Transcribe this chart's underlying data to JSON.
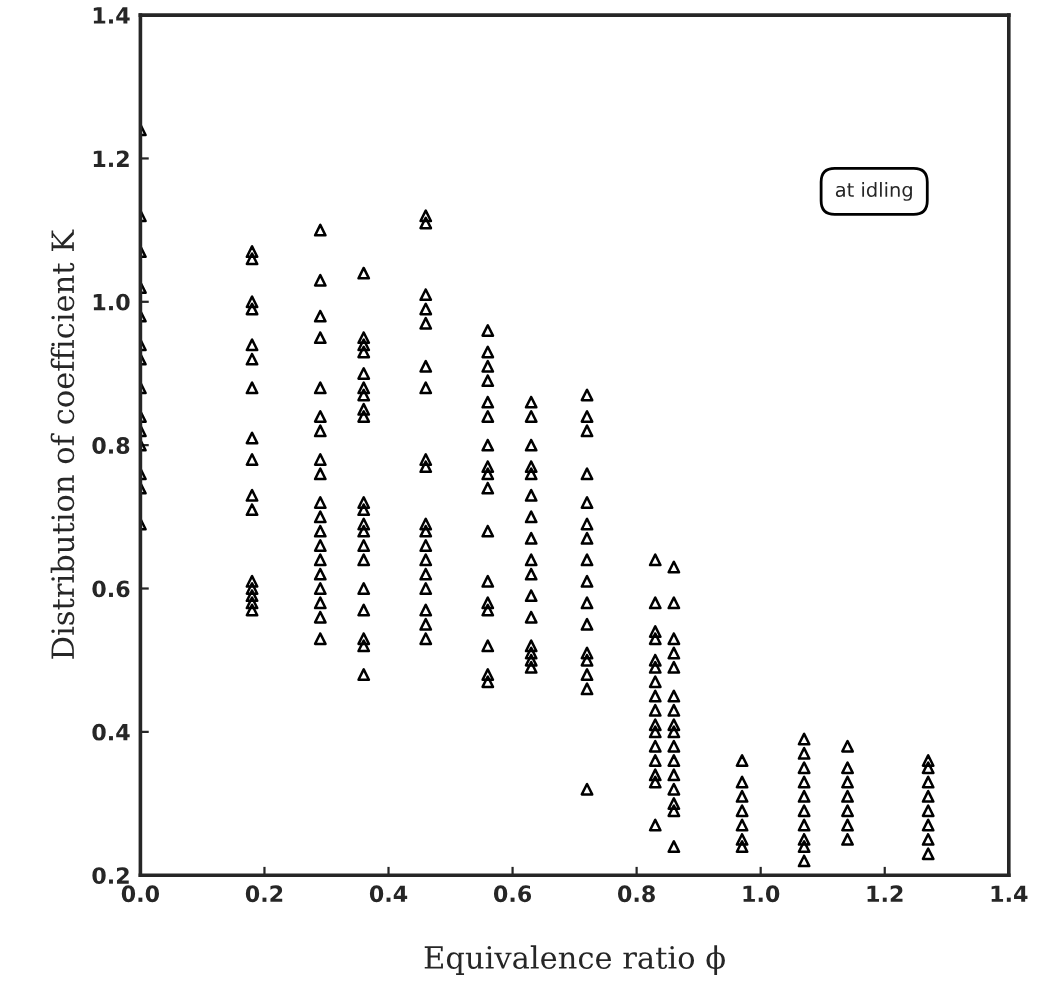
{
  "chart_data": {
    "type": "scatter",
    "xlabel": "Equivalence ratio ϕ",
    "ylabel": "Distribution of coefficient K",
    "xlim": [
      0.0,
      1.4
    ],
    "ylim": [
      0.2,
      1.4
    ],
    "xticks": [
      {
        "value": 0,
        "label": "0.0"
      },
      0.2,
      0.4,
      0.6,
      0.8,
      {
        "value": 1,
        "label": "1.0"
      },
      1.2,
      1.4
    ],
    "yticks": [
      0.2,
      0.4,
      0.6,
      0.8,
      {
        "value": 1,
        "label": "1.0"
      },
      1.2,
      1.4
    ],
    "grid": false,
    "legend": false,
    "marker": "triangle",
    "annotations": [
      "at idling"
    ],
    "series": [
      {
        "color": "#000000",
        "x": [
          0,
          0,
          0,
          0,
          0,
          0,
          0,
          0,
          0,
          0,
          0,
          0,
          0,
          0,
          0.18,
          0.18,
          0.18,
          0.18,
          0.18,
          0.18,
          0.18,
          0.18,
          0.18,
          0.18,
          0.18,
          0.18,
          0.18,
          0.18,
          0.18,
          0.18,
          0.29,
          0.29,
          0.29,
          0.29,
          0.29,
          0.29,
          0.29,
          0.29,
          0.29,
          0.29,
          0.29,
          0.29,
          0.29,
          0.29,
          0.29,
          0.29,
          0.29,
          0.29,
          0.29,
          0.36,
          0.36,
          0.36,
          0.36,
          0.36,
          0.36,
          0.36,
          0.36,
          0.36,
          0.36,
          0.36,
          0.36,
          0.36,
          0.36,
          0.36,
          0.36,
          0.36,
          0.36,
          0.36,
          0.36,
          0.46,
          0.46,
          0.46,
          0.46,
          0.46,
          0.46,
          0.46,
          0.46,
          0.46,
          0.46,
          0.46,
          0.46,
          0.46,
          0.46,
          0.46,
          0.46,
          0.46,
          0.46,
          0.56,
          0.56,
          0.56,
          0.56,
          0.56,
          0.56,
          0.56,
          0.56,
          0.56,
          0.56,
          0.56,
          0.56,
          0.56,
          0.56,
          0.56,
          0.56,
          0.56,
          0.63,
          0.63,
          0.63,
          0.63,
          0.63,
          0.63,
          0.63,
          0.63,
          0.63,
          0.63,
          0.63,
          0.63,
          0.63,
          0.63,
          0.63,
          0.63,
          0.72,
          0.72,
          0.72,
          0.72,
          0.72,
          0.72,
          0.72,
          0.72,
          0.72,
          0.72,
          0.72,
          0.72,
          0.72,
          0.72,
          0.72,
          0.72,
          0.83,
          0.83,
          0.83,
          0.83,
          0.83,
          0.83,
          0.83,
          0.83,
          0.83,
          0.83,
          0.83,
          0.83,
          0.83,
          0.83,
          0.83,
          0.83,
          0.86,
          0.86,
          0.86,
          0.86,
          0.86,
          0.86,
          0.86,
          0.86,
          0.86,
          0.86,
          0.86,
          0.86,
          0.86,
          0.86,
          0.86,
          0.86,
          0.97,
          0.97,
          0.97,
          0.97,
          0.97,
          0.97,
          0.97,
          1.07,
          1.07,
          1.07,
          1.07,
          1.07,
          1.07,
          1.07,
          1.07,
          1.07,
          1.07,
          1.14,
          1.14,
          1.14,
          1.14,
          1.14,
          1.14,
          1.14,
          1.27,
          1.27,
          1.27,
          1.27,
          1.27,
          1.27,
          1.27,
          1.27
        ],
        "values": [
          1.24,
          1.12,
          1.07,
          1.02,
          0.98,
          0.94,
          0.92,
          0.88,
          0.84,
          0.82,
          0.8,
          0.76,
          0.74,
          0.69,
          1.07,
          1.06,
          1.0,
          0.99,
          0.94,
          0.92,
          0.88,
          0.81,
          0.78,
          0.73,
          0.71,
          0.61,
          0.6,
          0.59,
          0.58,
          0.57,
          1.1,
          1.03,
          0.98,
          0.95,
          0.88,
          0.84,
          0.82,
          0.78,
          0.76,
          0.72,
          0.7,
          0.68,
          0.66,
          0.64,
          0.62,
          0.6,
          0.58,
          0.56,
          0.53,
          1.04,
          0.95,
          0.94,
          0.93,
          0.9,
          0.88,
          0.87,
          0.85,
          0.84,
          0.72,
          0.71,
          0.69,
          0.68,
          0.66,
          0.64,
          0.6,
          0.57,
          0.53,
          0.52,
          0.48,
          1.12,
          1.11,
          1.01,
          0.99,
          0.97,
          0.91,
          0.88,
          0.78,
          0.77,
          0.69,
          0.68,
          0.66,
          0.64,
          0.62,
          0.6,
          0.57,
          0.55,
          0.53,
          0.96,
          0.93,
          0.91,
          0.89,
          0.86,
          0.84,
          0.8,
          0.77,
          0.76,
          0.74,
          0.68,
          0.61,
          0.58,
          0.57,
          0.52,
          0.48,
          0.47,
          0.86,
          0.84,
          0.8,
          0.77,
          0.76,
          0.73,
          0.7,
          0.67,
          0.64,
          0.62,
          0.59,
          0.56,
          0.52,
          0.51,
          0.5,
          0.49,
          0.87,
          0.84,
          0.82,
          0.76,
          0.72,
          0.69,
          0.67,
          0.64,
          0.61,
          0.58,
          0.55,
          0.51,
          0.5,
          0.48,
          0.46,
          0.32,
          0.64,
          0.58,
          0.54,
          0.53,
          0.5,
          0.49,
          0.47,
          0.45,
          0.43,
          0.41,
          0.4,
          0.38,
          0.36,
          0.34,
          0.33,
          0.27,
          0.63,
          0.58,
          0.53,
          0.51,
          0.49,
          0.45,
          0.43,
          0.41,
          0.4,
          0.38,
          0.36,
          0.34,
          0.32,
          0.3,
          0.29,
          0.24,
          0.36,
          0.33,
          0.31,
          0.29,
          0.27,
          0.25,
          0.24,
          0.39,
          0.37,
          0.35,
          0.33,
          0.31,
          0.29,
          0.27,
          0.25,
          0.24,
          0.22,
          0.38,
          0.35,
          0.33,
          0.31,
          0.29,
          0.27,
          0.25,
          0.36,
          0.35,
          0.33,
          0.31,
          0.29,
          0.27,
          0.25,
          0.23
        ]
      }
    ]
  }
}
